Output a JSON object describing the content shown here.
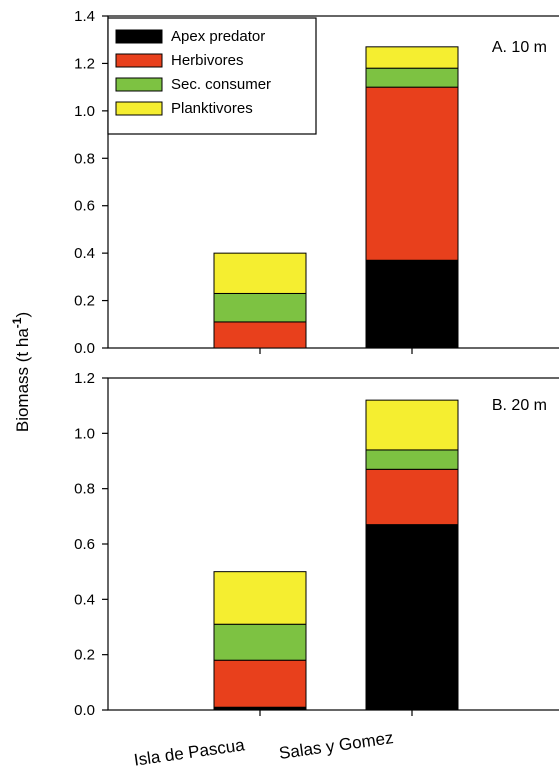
{
  "chart_data": {
    "type": "bar",
    "stacked": true,
    "ylabel": "Biomass (t ha",
    "ylabel_sup": "-1",
    "ylabel_close": ")",
    "categories": [
      "Isla de Pascua",
      "Salas y Gomez"
    ],
    "legend": {
      "placement": "top-left",
      "entries": [
        {
          "name": "Apex predator",
          "color": "#000000"
        },
        {
          "name": "Herbivores",
          "color": "#e8401c"
        },
        {
          "name": "Sec. consumer",
          "color": "#7dc242"
        },
        {
          "name": "Planktivores",
          "color": "#f5ee30"
        }
      ]
    },
    "panels": [
      {
        "label": "A. 10 m",
        "ylim": [
          0,
          1.4
        ],
        "yticks": [
          "0.0",
          "0.2",
          "0.4",
          "0.6",
          "0.8",
          "1.0",
          "1.2",
          "1.4"
        ],
        "series": [
          {
            "name": "Apex predator",
            "values": [
              0.0,
              0.37
            ]
          },
          {
            "name": "Herbivores",
            "values": [
              0.11,
              0.73
            ]
          },
          {
            "name": "Sec. consumer",
            "values": [
              0.12,
              0.08
            ]
          },
          {
            "name": "Planktivores",
            "values": [
              0.17,
              0.09
            ]
          }
        ]
      },
      {
        "label": "B. 20 m",
        "ylim": [
          0,
          1.2
        ],
        "yticks": [
          "0.0",
          "0.2",
          "0.4",
          "0.6",
          "0.8",
          "1.0",
          "1.2"
        ],
        "series": [
          {
            "name": "Apex predator",
            "values": [
              0.01,
              0.67
            ]
          },
          {
            "name": "Herbivores",
            "values": [
              0.17,
              0.2
            ]
          },
          {
            "name": "Sec. consumer",
            "values": [
              0.13,
              0.07
            ]
          },
          {
            "name": "Planktivores",
            "values": [
              0.19,
              0.18
            ]
          }
        ]
      }
    ]
  }
}
